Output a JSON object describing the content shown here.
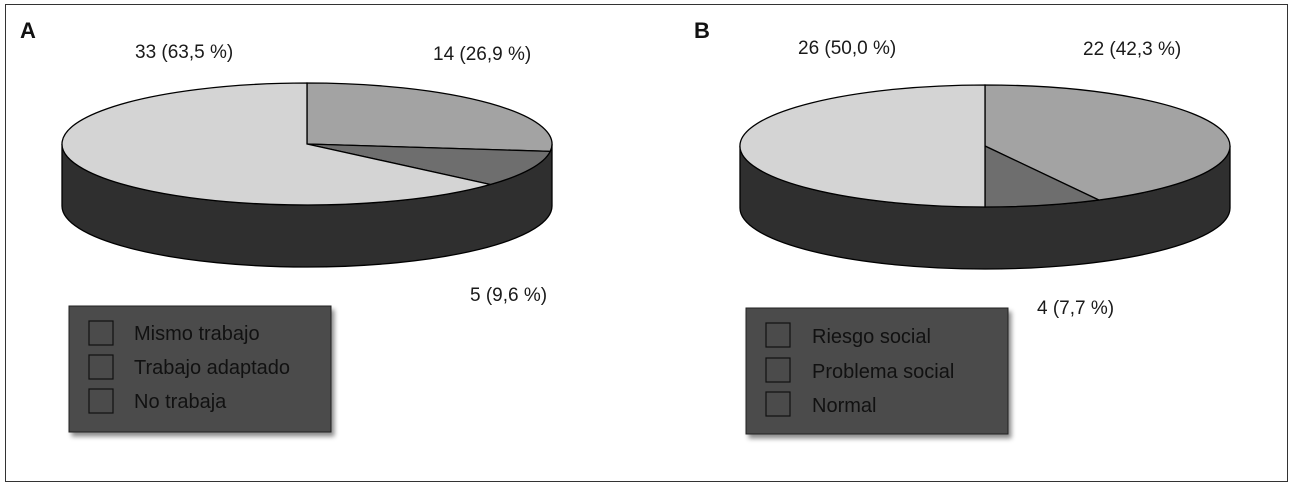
{
  "chart_data": [
    {
      "type": "pie",
      "panel_label": "A",
      "categories": [
        "Mismo trabajo",
        "Trabajo adaptado",
        "No trabaja"
      ],
      "values": [
        14,
        5,
        33
      ],
      "percent_labels": [
        "14 (26,9 %)",
        "5 (9,6 %)",
        "33 (63,5 %)"
      ],
      "slice_colors": [
        "#a3a3a3",
        "#6e6e6e",
        "#d4d4d4"
      ],
      "side_color": "#2f2f2f",
      "legend": {
        "placement": "bottom-left",
        "items": [
          "Mismo trabajo",
          "Trabajo adaptado",
          "No trabaja"
        ]
      }
    },
    {
      "type": "pie",
      "panel_label": "B",
      "categories": [
        "Riesgo social",
        "Problema social",
        "Normal"
      ],
      "values": [
        22,
        4,
        26
      ],
      "percent_labels": [
        "22 (42,3 %)",
        "4 (7,7 %)",
        "26 (50,0 %)"
      ],
      "slice_colors": [
        "#a3a3a3",
        "#6e6e6e",
        "#d4d4d4"
      ],
      "side_color": "#2f2f2f",
      "legend": {
        "placement": "bottom-left",
        "items": [
          "Riesgo social",
          "Problema social",
          "Normal"
        ]
      }
    }
  ]
}
